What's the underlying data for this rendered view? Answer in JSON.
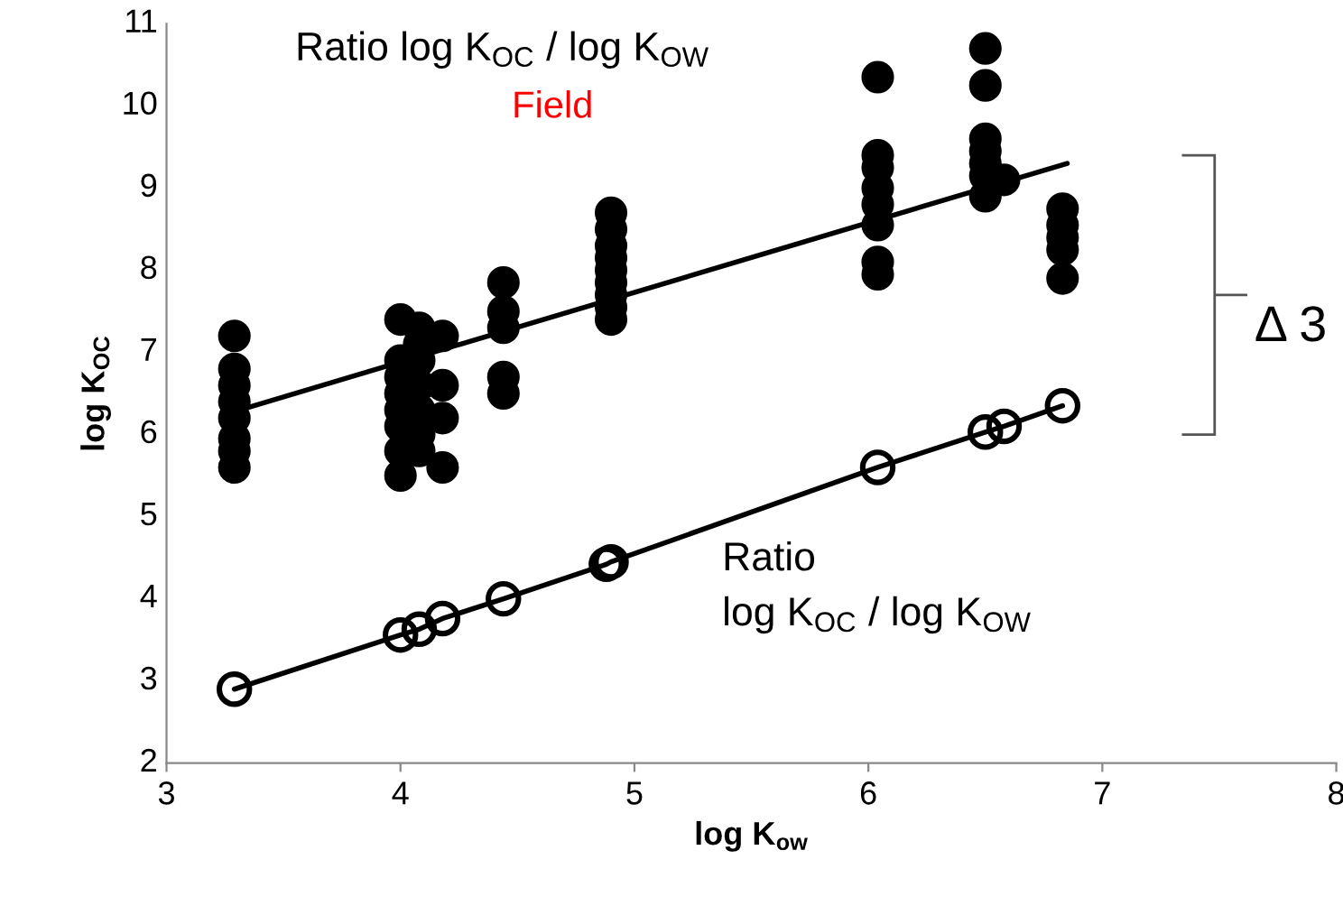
{
  "chart_data": {
    "type": "scatter",
    "xlabel": "log K$_{ow}$",
    "ylabel": "log K$_{OC}$",
    "xlim": [
      3,
      8
    ],
    "ylim": [
      2,
      11
    ],
    "xticks": [
      3,
      4,
      5,
      6,
      7,
      8
    ],
    "yticks": [
      2,
      3,
      4,
      5,
      6,
      7,
      8,
      9,
      10,
      11
    ],
    "grid": false,
    "legend": false,
    "annotations": [
      "Ratio log K$_{OC}$ / log K$_{OW}$",
      "Field",
      "Ratio\nlog K$_{OC}$ / log K$_{OW}$",
      "Δ 3"
    ],
    "series": [
      {
        "color": "#000000",
        "marker": "circle",
        "x": [
          3.29,
          3.29,
          3.29,
          3.29,
          3.29,
          3.29,
          3.29,
          3.29,
          4.0,
          4.0,
          4.0,
          4.0,
          4.0,
          4.0,
          4.0,
          4.0,
          4.08,
          4.08,
          4.08,
          4.08,
          4.08,
          4.08,
          4.08,
          4.18,
          4.18,
          4.18,
          4.18,
          4.44,
          4.44,
          4.44,
          4.44,
          4.44,
          4.9,
          4.9,
          4.9,
          4.9,
          4.9,
          4.9,
          4.9,
          4.9,
          4.9,
          6.04,
          6.04,
          6.04,
          6.04,
          6.04,
          6.04,
          6.04,
          6.04,
          6.5,
          6.5,
          6.5,
          6.5,
          6.5,
          6.5,
          6.5,
          6.58,
          6.83,
          6.83,
          6.83,
          6.83,
          6.83
        ],
        "values": [
          7.2,
          6.8,
          6.6,
          6.4,
          6.2,
          5.95,
          5.8,
          5.6,
          7.4,
          6.9,
          6.7,
          6.5,
          6.3,
          6.1,
          5.8,
          5.5,
          7.3,
          7.1,
          6.9,
          6.6,
          6.3,
          6.0,
          5.8,
          7.2,
          6.6,
          6.2,
          5.6,
          7.85,
          7.5,
          7.3,
          6.7,
          6.5,
          8.7,
          8.5,
          8.3,
          8.15,
          8.0,
          7.85,
          7.7,
          7.55,
          7.4,
          10.35,
          9.4,
          9.25,
          9.0,
          8.8,
          8.55,
          8.1,
          7.95,
          10.7,
          10.25,
          9.6,
          9.45,
          9.3,
          9.15,
          8.9,
          9.1,
          8.75,
          8.55,
          8.4,
          8.25,
          7.9
        ]
      },
      {
        "type": "line",
        "color": "#000000",
        "x": [
          3.29,
          6.85
        ],
        "values": [
          6.28,
          9.3
        ]
      },
      {
        "type": "line",
        "color": "#000000",
        "marker": "circle",
        "x": [
          3.29,
          4.0,
          4.08,
          4.18,
          4.44,
          4.88,
          4.9,
          6.04,
          6.5,
          6.58,
          6.83
        ],
        "values": [
          2.9,
          3.56,
          3.63,
          3.76,
          4.0,
          4.42,
          4.45,
          5.6,
          6.03,
          6.1,
          6.35
        ]
      }
    ]
  }
}
